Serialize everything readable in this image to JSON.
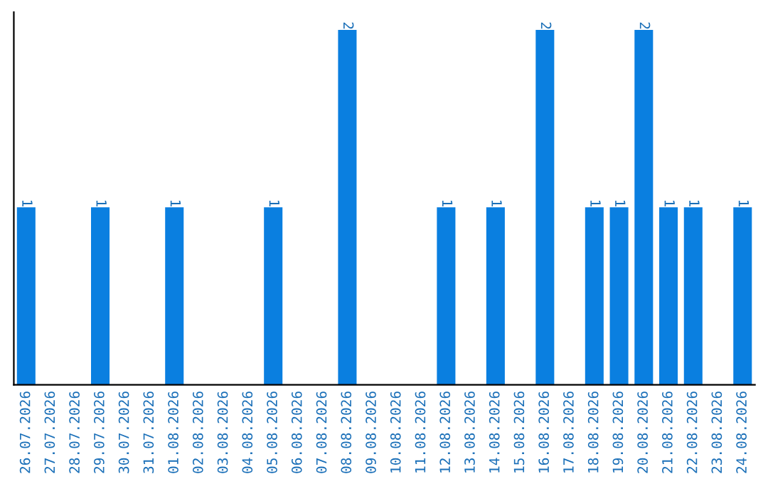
{
  "chart_data": {
    "type": "bar",
    "categories": [
      "26.07.2026",
      "27.07.2026",
      "28.07.2026",
      "29.07.2026",
      "30.07.2026",
      "31.07.2026",
      "01.08.2026",
      "02.08.2026",
      "03.08.2026",
      "04.08.2026",
      "05.08.2026",
      "06.08.2026",
      "07.08.2026",
      "08.08.2026",
      "09.08.2026",
      "10.08.2026",
      "11.08.2026",
      "12.08.2026",
      "13.08.2026",
      "14.08.2026",
      "15.08.2026",
      "16.08.2026",
      "17.08.2026",
      "18.08.2026",
      "19.08.2026",
      "20.08.2026",
      "21.08.2026",
      "22.08.2026",
      "23.08.2026",
      "24.08.2026"
    ],
    "values": [
      1,
      0,
      0,
      1,
      0,
      0,
      1,
      0,
      0,
      0,
      1,
      0,
      0,
      2,
      0,
      0,
      0,
      1,
      0,
      1,
      0,
      2,
      0,
      1,
      1,
      2,
      1,
      1,
      0,
      1
    ],
    "value_labels": [
      "1",
      null,
      null,
      "1",
      null,
      null,
      "1",
      null,
      null,
      null,
      "1",
      null,
      null,
      "2",
      null,
      null,
      null,
      "1",
      null,
      "1",
      null,
      "2",
      null,
      "1",
      "1",
      "2",
      "1",
      "1",
      null,
      "1"
    ],
    "color": "#0a7fe0",
    "grid": false
  }
}
